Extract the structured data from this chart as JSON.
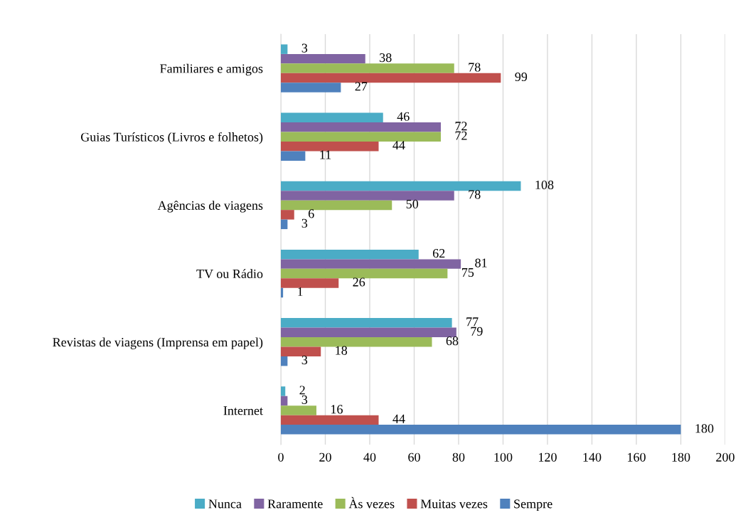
{
  "chart_data": {
    "type": "bar",
    "orientation": "horizontal",
    "categories": [
      "Familiares e amigos",
      "Guias Turísticos (Livros e folhetos)",
      "Agências de viagens",
      "TV ou Rádio",
      "Revistas de viagens (Imprensa em papel)",
      "Internet"
    ],
    "series": [
      {
        "name": "Nunca",
        "color": "#4bacc6",
        "values": [
          3,
          46,
          108,
          62,
          77,
          2
        ]
      },
      {
        "name": "Raramente",
        "color": "#8064a2",
        "values": [
          38,
          72,
          78,
          81,
          79,
          3
        ]
      },
      {
        "name": "Às vezes",
        "color": "#9bbb59",
        "values": [
          78,
          72,
          50,
          75,
          68,
          16
        ]
      },
      {
        "name": "Muitas vezes",
        "color": "#c0504d",
        "values": [
          99,
          44,
          6,
          26,
          18,
          44
        ]
      },
      {
        "name": "Sempre",
        "color": "#4f81bd",
        "values": [
          27,
          11,
          3,
          1,
          3,
          180
        ]
      }
    ],
    "xlim": [
      0,
      200
    ],
    "xticks": [
      0,
      20,
      40,
      60,
      80,
      100,
      120,
      140,
      160,
      180,
      200
    ],
    "grid": "x",
    "legend": "bottom",
    "data_labels": true
  }
}
